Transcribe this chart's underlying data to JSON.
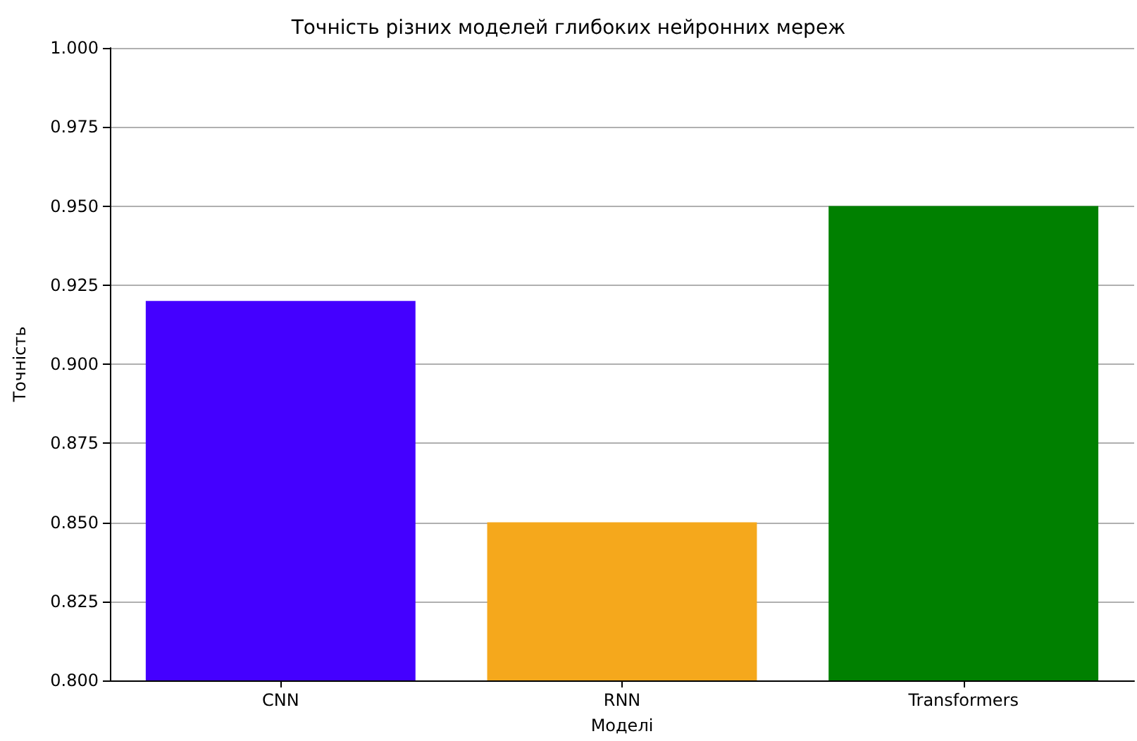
{
  "chart_data": {
    "type": "bar",
    "title": "Точність різних моделей глибоких нейронних мереж",
    "xlabel": "Моделі",
    "ylabel": "Точність",
    "categories": [
      "CNN",
      "RNN",
      "Transformers"
    ],
    "values": [
      0.92,
      0.85,
      0.95
    ],
    "colors": [
      "#4400ff",
      "#f5a81c",
      "#008000"
    ],
    "ylim": [
      0.8,
      1.0
    ],
    "yticks": [
      {
        "value": 0.8,
        "label": "0.800"
      },
      {
        "value": 0.825,
        "label": "0.825"
      },
      {
        "value": 0.85,
        "label": "0.850"
      },
      {
        "value": 0.875,
        "label": "0.875"
      },
      {
        "value": 0.9,
        "label": "0.900"
      },
      {
        "value": 0.925,
        "label": "0.925"
      },
      {
        "value": 0.95,
        "label": "0.950"
      },
      {
        "value": 0.975,
        "label": "0.975"
      },
      {
        "value": 1.0,
        "label": "1.000"
      }
    ],
    "grid": "y"
  }
}
